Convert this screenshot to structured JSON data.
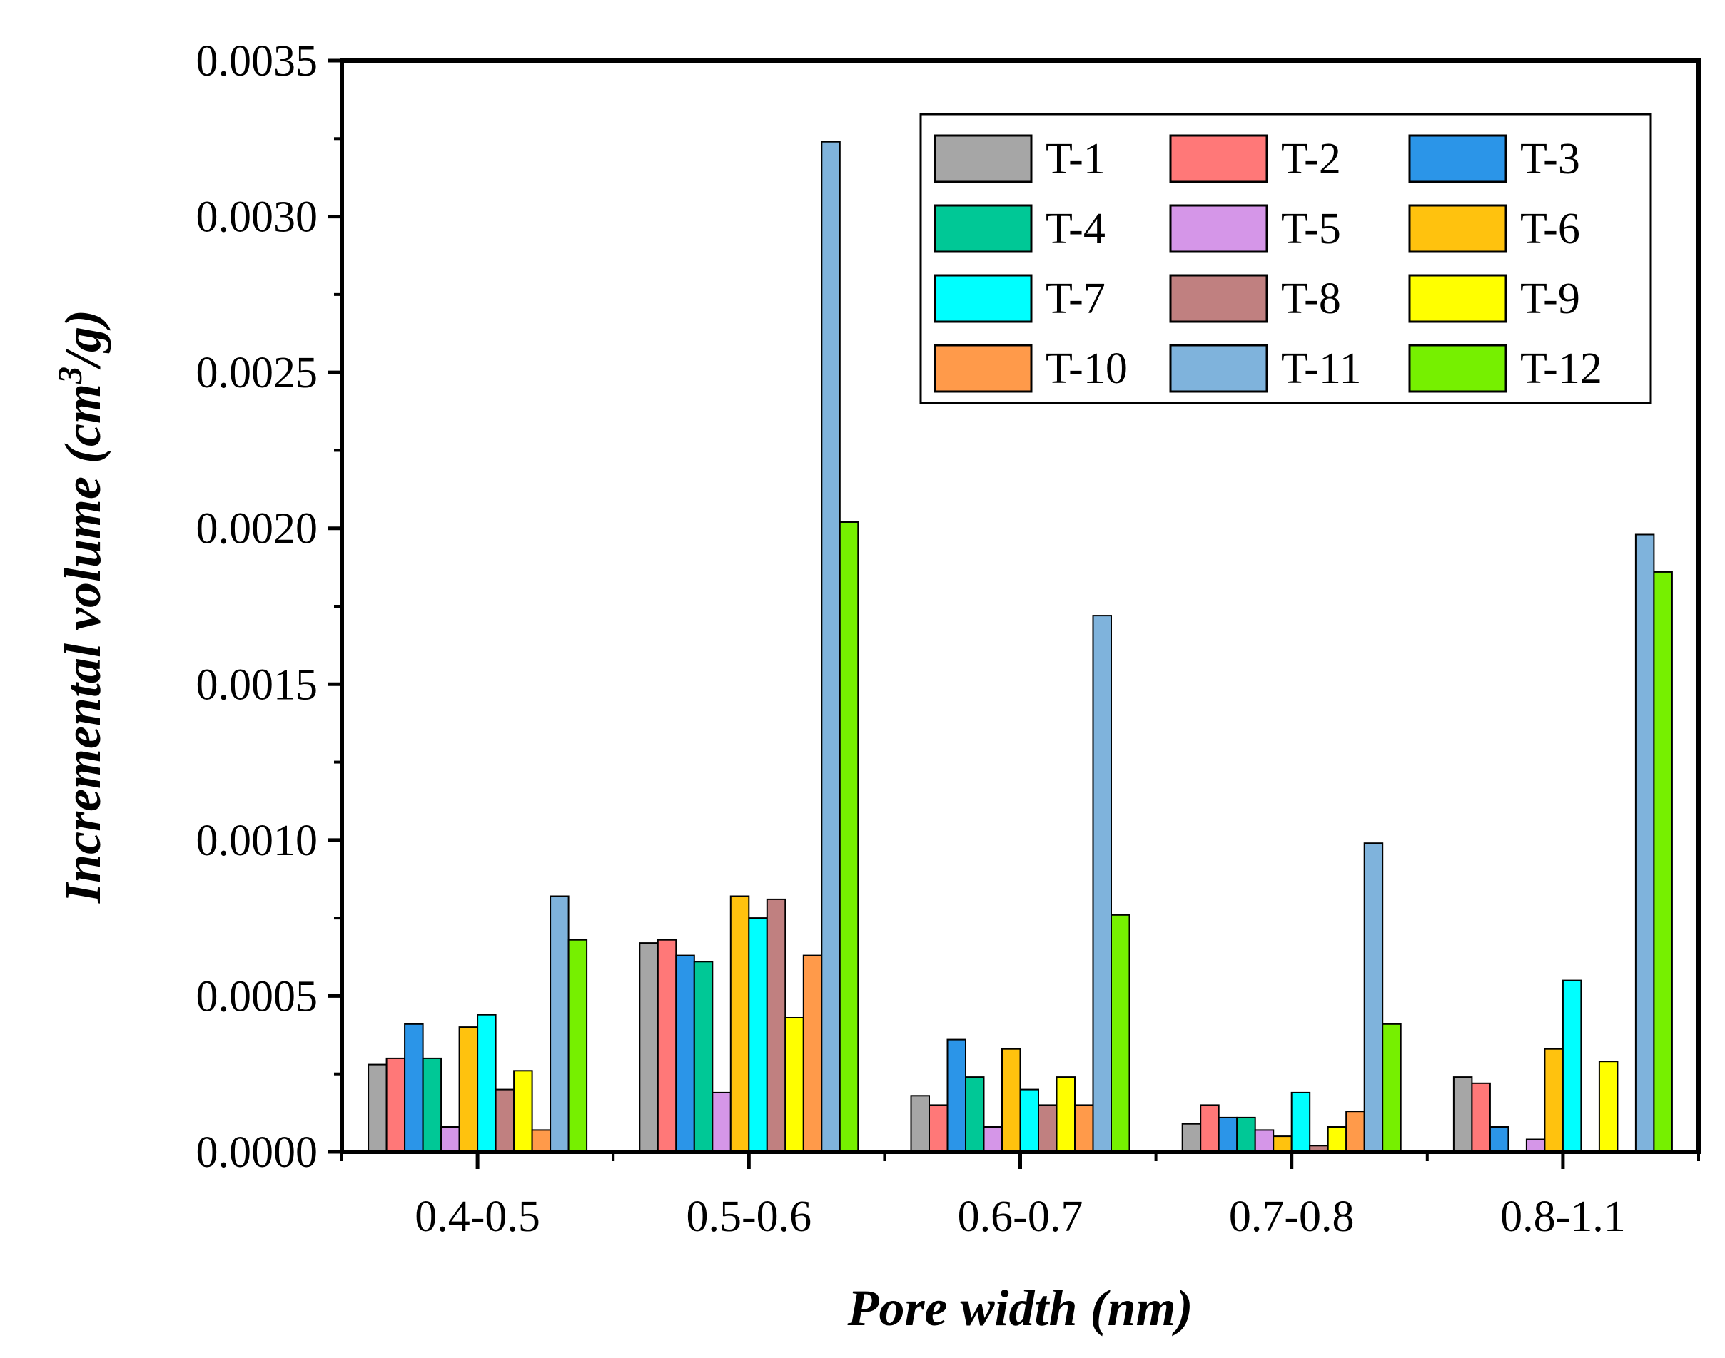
{
  "chart_data": {
    "type": "bar",
    "title": "",
    "xlabel": "Pore width (nm)",
    "ylabel_main": "Incremental volume (cm",
    "ylabel_sup": "3",
    "ylabel_end": "/g)",
    "categories": [
      "0.4-0.5",
      "0.5-0.6",
      "0.6-0.7",
      "0.7-0.8",
      "0.8-1.1"
    ],
    "ylim": [
      0,
      0.0035
    ],
    "yticks": [
      0.0,
      0.0005,
      0.001,
      0.0015,
      0.002,
      0.0025,
      0.003,
      0.0035
    ],
    "ytick_labels": [
      "0.0000",
      "0.0005",
      "0.0010",
      "0.0015",
      "0.0020",
      "0.0025",
      "0.0030",
      "0.0035"
    ],
    "legend_position": "top-right",
    "series": [
      {
        "name": "T-1",
        "color": "#a6a6a6",
        "values": [
          0.00028,
          0.00067,
          0.00018,
          9e-05,
          0.00024
        ]
      },
      {
        "name": "T-2",
        "color": "#ff7878",
        "values": [
          0.0003,
          0.00068,
          0.00015,
          0.00015,
          0.00022
        ]
      },
      {
        "name": "T-3",
        "color": "#2b95e8",
        "values": [
          0.00041,
          0.00063,
          0.00036,
          0.00011,
          8e-05
        ]
      },
      {
        "name": "T-4",
        "color": "#00c896",
        "values": [
          0.0003,
          0.00061,
          0.00024,
          0.00011,
          0.0
        ]
      },
      {
        "name": "T-5",
        "color": "#d596e8",
        "values": [
          8e-05,
          0.00019,
          8e-05,
          7e-05,
          4e-05
        ]
      },
      {
        "name": "T-6",
        "color": "#ffc20e",
        "values": [
          0.0004,
          0.00082,
          0.00033,
          5e-05,
          0.00033
        ]
      },
      {
        "name": "T-7",
        "color": "#00ffff",
        "values": [
          0.00044,
          0.00075,
          0.0002,
          0.00019,
          0.00055
        ]
      },
      {
        "name": "T-8",
        "color": "#c08080",
        "values": [
          0.0002,
          0.00081,
          0.00015,
          2e-05,
          0.0
        ]
      },
      {
        "name": "T-9",
        "color": "#ffff00",
        "values": [
          0.00026,
          0.00043,
          0.00024,
          8e-05,
          0.00029
        ]
      },
      {
        "name": "T-10",
        "color": "#ff9a4a",
        "values": [
          7e-05,
          0.00063,
          0.00015,
          0.00013,
          0.0
        ]
      },
      {
        "name": "T-11",
        "color": "#7fb3dc",
        "values": [
          0.00082,
          0.00324,
          0.00172,
          0.00099,
          0.00198
        ]
      },
      {
        "name": "T-12",
        "color": "#76f000",
        "values": [
          0.00068,
          0.00202,
          0.00076,
          0.00041,
          0.00186
        ]
      }
    ]
  }
}
